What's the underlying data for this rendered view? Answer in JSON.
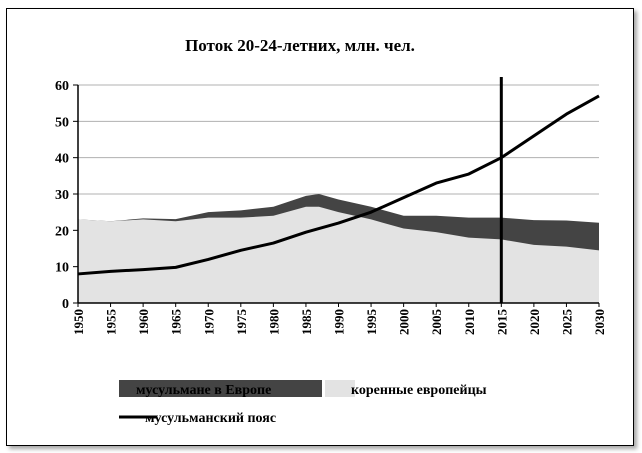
{
  "chart_data": {
    "type": "area",
    "title": "Поток 20-24-летних, млн. чел.",
    "xlabel": "",
    "ylabel": "",
    "xlim": [
      1950,
      2030
    ],
    "ylim": [
      0,
      60
    ],
    "yticks": [
      "0",
      "10",
      "20",
      "30",
      "40",
      "50",
      "60"
    ],
    "xticks": [
      "1950",
      "1955",
      "1960",
      "1965",
      "1970",
      "1975",
      "1980",
      "1985",
      "1990",
      "1995",
      "2000",
      "2005",
      "2010",
      "2015",
      "2020",
      "2025",
      "2030"
    ],
    "grid": true,
    "legend": "bottom",
    "vline_x": 2015,
    "series": [
      {
        "name": "коренные европейцы",
        "kind": "area",
        "color": "#e3e3e3",
        "x": [
          1950,
          1955,
          1960,
          1965,
          1970,
          1975,
          1980,
          1985,
          1987,
          1990,
          1995,
          2000,
          2005,
          2010,
          2015,
          2020,
          2025,
          2030
        ],
        "values": [
          23,
          22.5,
          23,
          22.5,
          23.5,
          23.5,
          24,
          26.5,
          26.5,
          25,
          23,
          20.5,
          19.5,
          18,
          17.5,
          16,
          15.5,
          14.5
        ]
      },
      {
        "name": "мусульмане в Европе",
        "kind": "stacked_area",
        "color": "#444444",
        "x": [
          1950,
          1955,
          1960,
          1965,
          1970,
          1975,
          1980,
          1985,
          1987,
          1990,
          1995,
          2000,
          2005,
          2010,
          2015,
          2020,
          2025,
          2030
        ],
        "values": [
          0,
          0,
          0.3,
          0.6,
          1.5,
          2,
          2.5,
          3,
          3.5,
          3.5,
          3.5,
          3.5,
          4.5,
          5.5,
          6,
          6.8,
          7.2,
          7.6
        ]
      },
      {
        "name": "мусульманский пояс",
        "kind": "line",
        "color": "#000000",
        "x": [
          1950,
          1955,
          1960,
          1965,
          1970,
          1975,
          1980,
          1985,
          1990,
          1995,
          2000,
          2005,
          2010,
          2015,
          2020,
          2025,
          2030
        ],
        "values": [
          8,
          8.7,
          9.2,
          9.8,
          12,
          14.5,
          16.5,
          19.5,
          22,
          25,
          29,
          33,
          35.5,
          40,
          46,
          52,
          57
        ]
      }
    ]
  }
}
